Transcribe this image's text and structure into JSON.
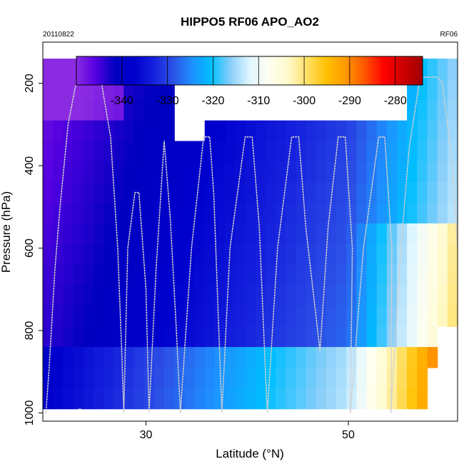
{
  "chart_data": {
    "type": "heatmap",
    "title": "HIPPO5 RF06 APO_AO2",
    "subtitle_left": "20110822",
    "subtitle_right": "RF06",
    "xlabel": "Latitude (°N)",
    "ylabel": "Pressure (hPa)",
    "xlim": [
      19.8,
      60.8
    ],
    "ylim": [
      1020,
      100
    ],
    "x_ticks": [
      30,
      50
    ],
    "y_ticks": [
      200,
      400,
      600,
      800,
      1000
    ],
    "colorbar": {
      "range": [
        -350,
        -274
      ],
      "ticks": [
        -340,
        -330,
        -320,
        -310,
        -300,
        -290,
        -280
      ],
      "colors": [
        "#8a2be2",
        "#5500e0",
        "#0000c0",
        "#0000cd",
        "#1520dd",
        "#2c4fe6",
        "#1e90ff",
        "#00bfff",
        "#87cefa",
        "#e0f6ff",
        "#fffff0",
        "#fffacd",
        "#ffe066",
        "#ffc000",
        "#ff9900",
        "#ff5500",
        "#ff0000",
        "#cc0000",
        "#a00000"
      ]
    },
    "lat_grid": [
      19.8,
      22.3,
      24.8,
      27.3,
      29.8,
      32.3,
      34.8,
      37.3,
      39.8,
      42.3,
      44.8,
      47.3,
      49.8,
      52.3,
      54.8,
      57.3,
      59.8
    ],
    "pressure_levels": [
      150,
      200,
      250,
      300,
      350,
      400,
      450,
      500,
      550,
      600,
      650,
      700,
      750,
      800,
      850,
      900,
      950,
      1000
    ],
    "flight_track": [
      {
        "lat": 20.1,
        "p": 1000
      },
      {
        "lat": 20.4,
        "p": 900
      },
      {
        "lat": 21.0,
        "p": 650
      },
      {
        "lat": 21.5,
        "p": 500
      },
      {
        "lat": 22.3,
        "p": 300
      },
      {
        "lat": 23.0,
        "p": 210
      },
      {
        "lat": 23.5,
        "p": 185
      },
      {
        "lat": 25.5,
        "p": 185
      },
      {
        "lat": 26.5,
        "p": 330
      },
      {
        "lat": 27.2,
        "p": 600
      },
      {
        "lat": 27.6,
        "p": 850
      },
      {
        "lat": 27.8,
        "p": 1000
      },
      {
        "lat": 28.2,
        "p": 600
      },
      {
        "lat": 28.9,
        "p": 465
      },
      {
        "lat": 29.3,
        "p": 465
      },
      {
        "lat": 30.0,
        "p": 700
      },
      {
        "lat": 30.3,
        "p": 1000
      },
      {
        "lat": 31.0,
        "p": 650
      },
      {
        "lat": 31.8,
        "p": 340
      },
      {
        "lat": 32.4,
        "p": 530
      },
      {
        "lat": 33.0,
        "p": 800
      },
      {
        "lat": 33.4,
        "p": 1000
      },
      {
        "lat": 34.5,
        "p": 600
      },
      {
        "lat": 35.7,
        "p": 330
      },
      {
        "lat": 36.3,
        "p": 330
      },
      {
        "lat": 36.7,
        "p": 470
      },
      {
        "lat": 37.5,
        "p": 1000
      },
      {
        "lat": 38.3,
        "p": 600
      },
      {
        "lat": 39.8,
        "p": 330
      },
      {
        "lat": 40.5,
        "p": 330
      },
      {
        "lat": 41.2,
        "p": 550
      },
      {
        "lat": 41.8,
        "p": 900
      },
      {
        "lat": 42.0,
        "p": 1000
      },
      {
        "lat": 43.0,
        "p": 600
      },
      {
        "lat": 44.4,
        "p": 330
      },
      {
        "lat": 45.1,
        "p": 330
      },
      {
        "lat": 45.8,
        "p": 550
      },
      {
        "lat": 47.2,
        "p": 850
      },
      {
        "lat": 48.0,
        "p": 550
      },
      {
        "lat": 49.0,
        "p": 330
      },
      {
        "lat": 49.7,
        "p": 330
      },
      {
        "lat": 50.4,
        "p": 600
      },
      {
        "lat": 50.2,
        "p": 1000
      },
      {
        "lat": 51.5,
        "p": 600
      },
      {
        "lat": 53.0,
        "p": 330
      },
      {
        "lat": 53.6,
        "p": 330
      },
      {
        "lat": 54.3,
        "p": 600
      },
      {
        "lat": 54.2,
        "p": 1000
      },
      {
        "lat": 55.2,
        "p": 600
      },
      {
        "lat": 56.0,
        "p": 360
      },
      {
        "lat": 57.0,
        "p": 200
      },
      {
        "lat": 57.4,
        "p": 185
      },
      {
        "lat": 58.8,
        "p": 185
      },
      {
        "lat": 59.3,
        "p": 200
      },
      {
        "lat": 60.3,
        "p": 400
      },
      {
        "lat": 60.8,
        "p": 600
      }
    ]
  }
}
